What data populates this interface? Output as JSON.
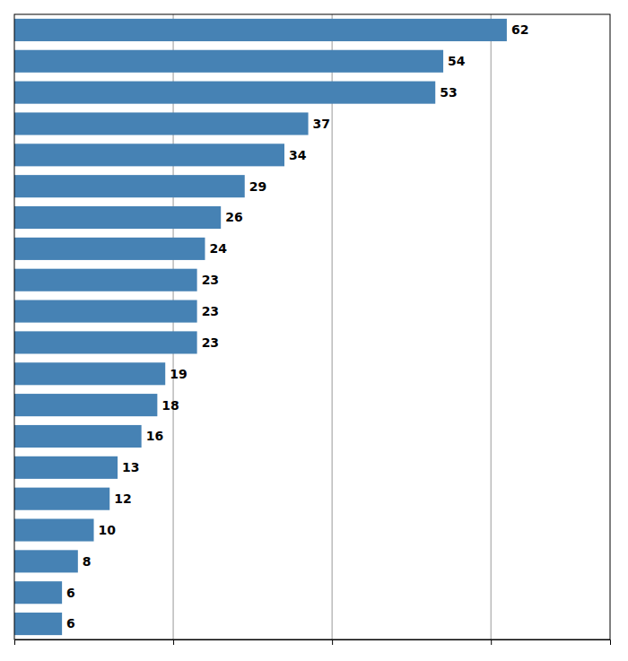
{
  "chart_data": {
    "type": "bar",
    "orientation": "horizontal",
    "values": [
      62,
      54,
      53,
      37,
      34,
      29,
      26,
      24,
      23,
      23,
      23,
      19,
      18,
      16,
      13,
      12,
      10,
      8,
      6,
      6
    ],
    "xlim": [
      0,
      75
    ],
    "xticks": [
      20,
      40,
      60
    ],
    "grid": true,
    "tick_labels": false,
    "data_labels": true
  }
}
